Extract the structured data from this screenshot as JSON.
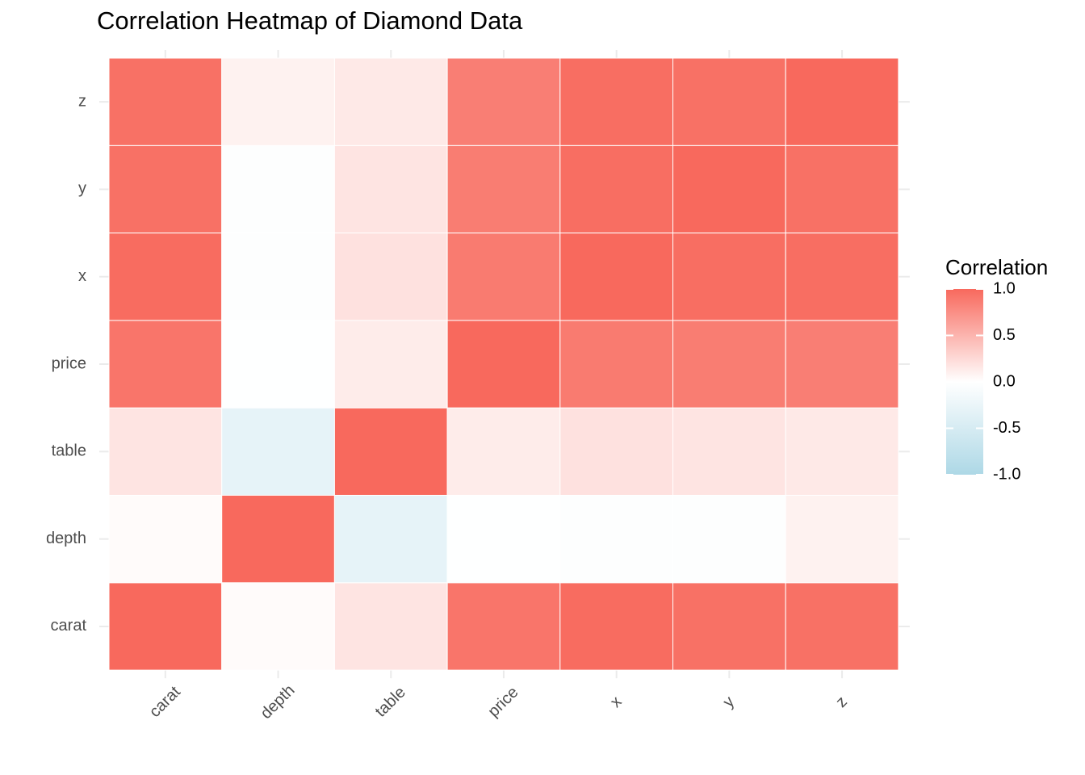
{
  "chart_data": {
    "type": "heatmap",
    "title": "Correlation Heatmap of Diamond Data",
    "xlabel": "",
    "ylabel": "",
    "x_categories": [
      "carat",
      "depth",
      "table",
      "price",
      "x",
      "y",
      "z"
    ],
    "y_categories": [
      "carat",
      "depth",
      "table",
      "price",
      "x",
      "y",
      "z"
    ],
    "values": [
      [
        1.0,
        0.03,
        0.18,
        0.92,
        0.98,
        0.95,
        0.95
      ],
      [
        0.03,
        1.0,
        -0.3,
        -0.01,
        -0.03,
        -0.03,
        0.09
      ],
      [
        0.18,
        -0.3,
        1.0,
        0.13,
        0.2,
        0.18,
        0.15
      ],
      [
        0.92,
        -0.01,
        0.13,
        1.0,
        0.88,
        0.87,
        0.86
      ],
      [
        0.98,
        -0.03,
        0.2,
        0.88,
        1.0,
        0.97,
        0.97
      ],
      [
        0.95,
        -0.03,
        0.18,
        0.87,
        0.97,
        1.0,
        0.95
      ],
      [
        0.95,
        0.09,
        0.15,
        0.86,
        0.97,
        0.95,
        1.0
      ]
    ],
    "legend": {
      "title": "Correlation",
      "breaks": [
        "1.0",
        "0.5",
        "0.0",
        "-0.5",
        "-1.0"
      ],
      "break_values": [
        1.0,
        0.5,
        0.0,
        -0.5,
        -1.0
      ],
      "placement": "right"
    },
    "color_scale": {
      "low": "#add8e6",
      "mid": "#ffffff",
      "high": "#f8695d",
      "limits": [
        -1,
        1
      ]
    },
    "grid": true
  }
}
